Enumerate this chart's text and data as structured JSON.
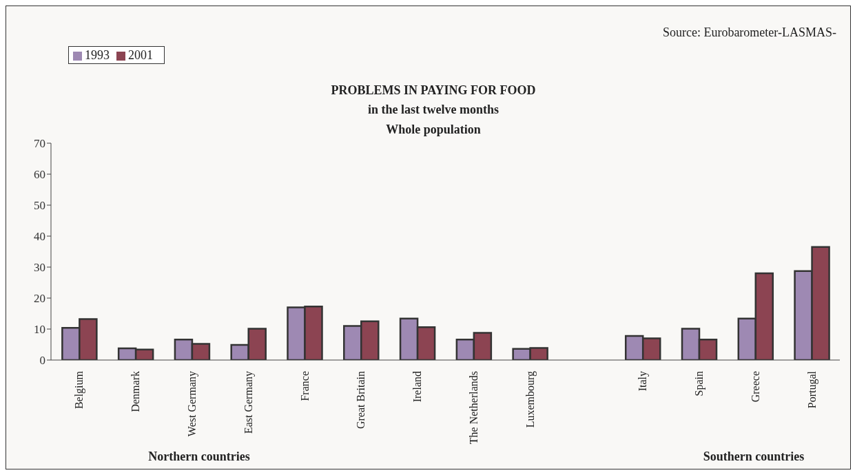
{
  "chart_data": {
    "type": "bar",
    "title": "PROBLEMS IN PAYING FOR FOOD",
    "subtitle": "in the last twelve months\nWhole population",
    "categories": [
      "Belgium",
      "Denmark",
      "West Germany",
      "East Germany",
      "France",
      "Great Britain",
      "Ireland",
      "The Netherlands",
      "Luxembourg",
      null,
      "Italy",
      "Spain",
      "Greece",
      "Portugal"
    ],
    "series": [
      {
        "name": "1993",
        "color": "#9e89b3",
        "values": [
          10.4,
          3.8,
          6.6,
          4.9,
          17.0,
          11.0,
          13.4,
          6.6,
          3.6,
          null,
          7.8,
          10.1,
          13.4,
          28.7
        ]
      },
      {
        "name": "2001",
        "color": "#8c4452",
        "values": [
          13.2,
          3.4,
          5.2,
          10.1,
          17.3,
          12.5,
          10.6,
          8.8,
          3.9,
          null,
          7.0,
          6.6,
          28.0,
          36.5
        ]
      }
    ],
    "ylim": [
      0,
      70
    ],
    "yticks": [
      0,
      10,
      20,
      30,
      40,
      50,
      60,
      70
    ],
    "grid": false,
    "legend": "top left",
    "annotations": [
      "Source: Eurobarometer-LASMAS-",
      "Northern countries",
      "Southern countries"
    ]
  }
}
